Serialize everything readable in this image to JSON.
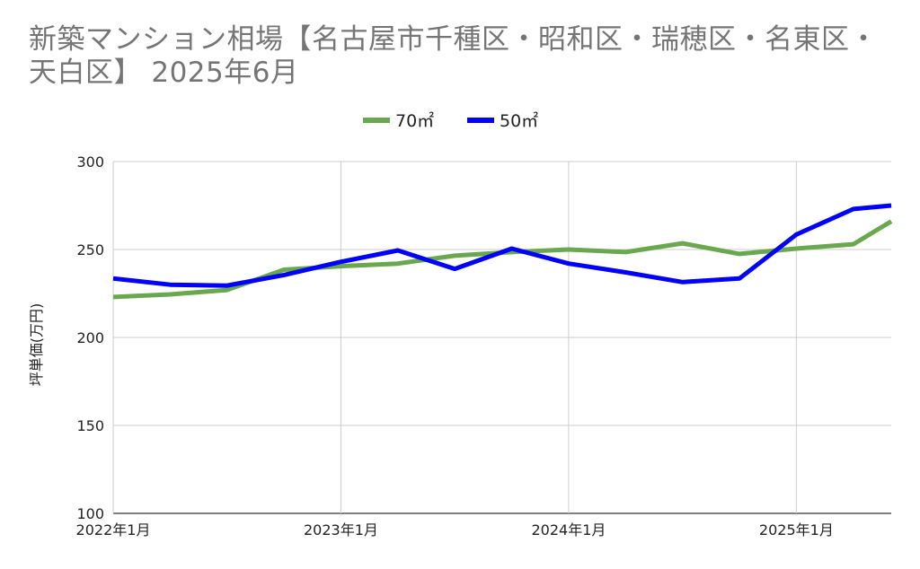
{
  "chart_data": {
    "type": "line",
    "title": "新築マンション相場【名古屋市千種区・昭和区・瑞穂区・名東区・天白区】 2025年6月",
    "xlabel": "",
    "ylabel": "坪単価(万円)",
    "ylim": [
      100,
      300
    ],
    "yticks": [
      "100",
      "150",
      "200",
      "250",
      "300"
    ],
    "xticks": [
      "2022年1月",
      "2023年1月",
      "2024年1月",
      "2025年1月"
    ],
    "x": [
      "2022-01",
      "2022-04",
      "2022-07",
      "2022-10",
      "2023-01",
      "2023-04",
      "2023-07",
      "2023-10",
      "2024-01",
      "2024-04",
      "2024-07",
      "2024-10",
      "2025-01",
      "2025-04",
      "2025-06"
    ],
    "legend_position": "top-center",
    "grid": true,
    "series": [
      {
        "name": "70㎡",
        "color": "#6aa84f",
        "values": [
          223,
          224.5,
          227,
          238.5,
          240.5,
          242,
          246.5,
          248.5,
          250,
          248.5,
          253.5,
          247.5,
          250.5,
          253,
          266
        ]
      },
      {
        "name": "50㎡",
        "color": "#0000ff",
        "values": [
          233.5,
          230,
          229.5,
          235.5,
          243,
          249.5,
          239,
          250.5,
          242,
          237,
          231.5,
          233.5,
          258.5,
          273,
          275
        ]
      }
    ]
  }
}
